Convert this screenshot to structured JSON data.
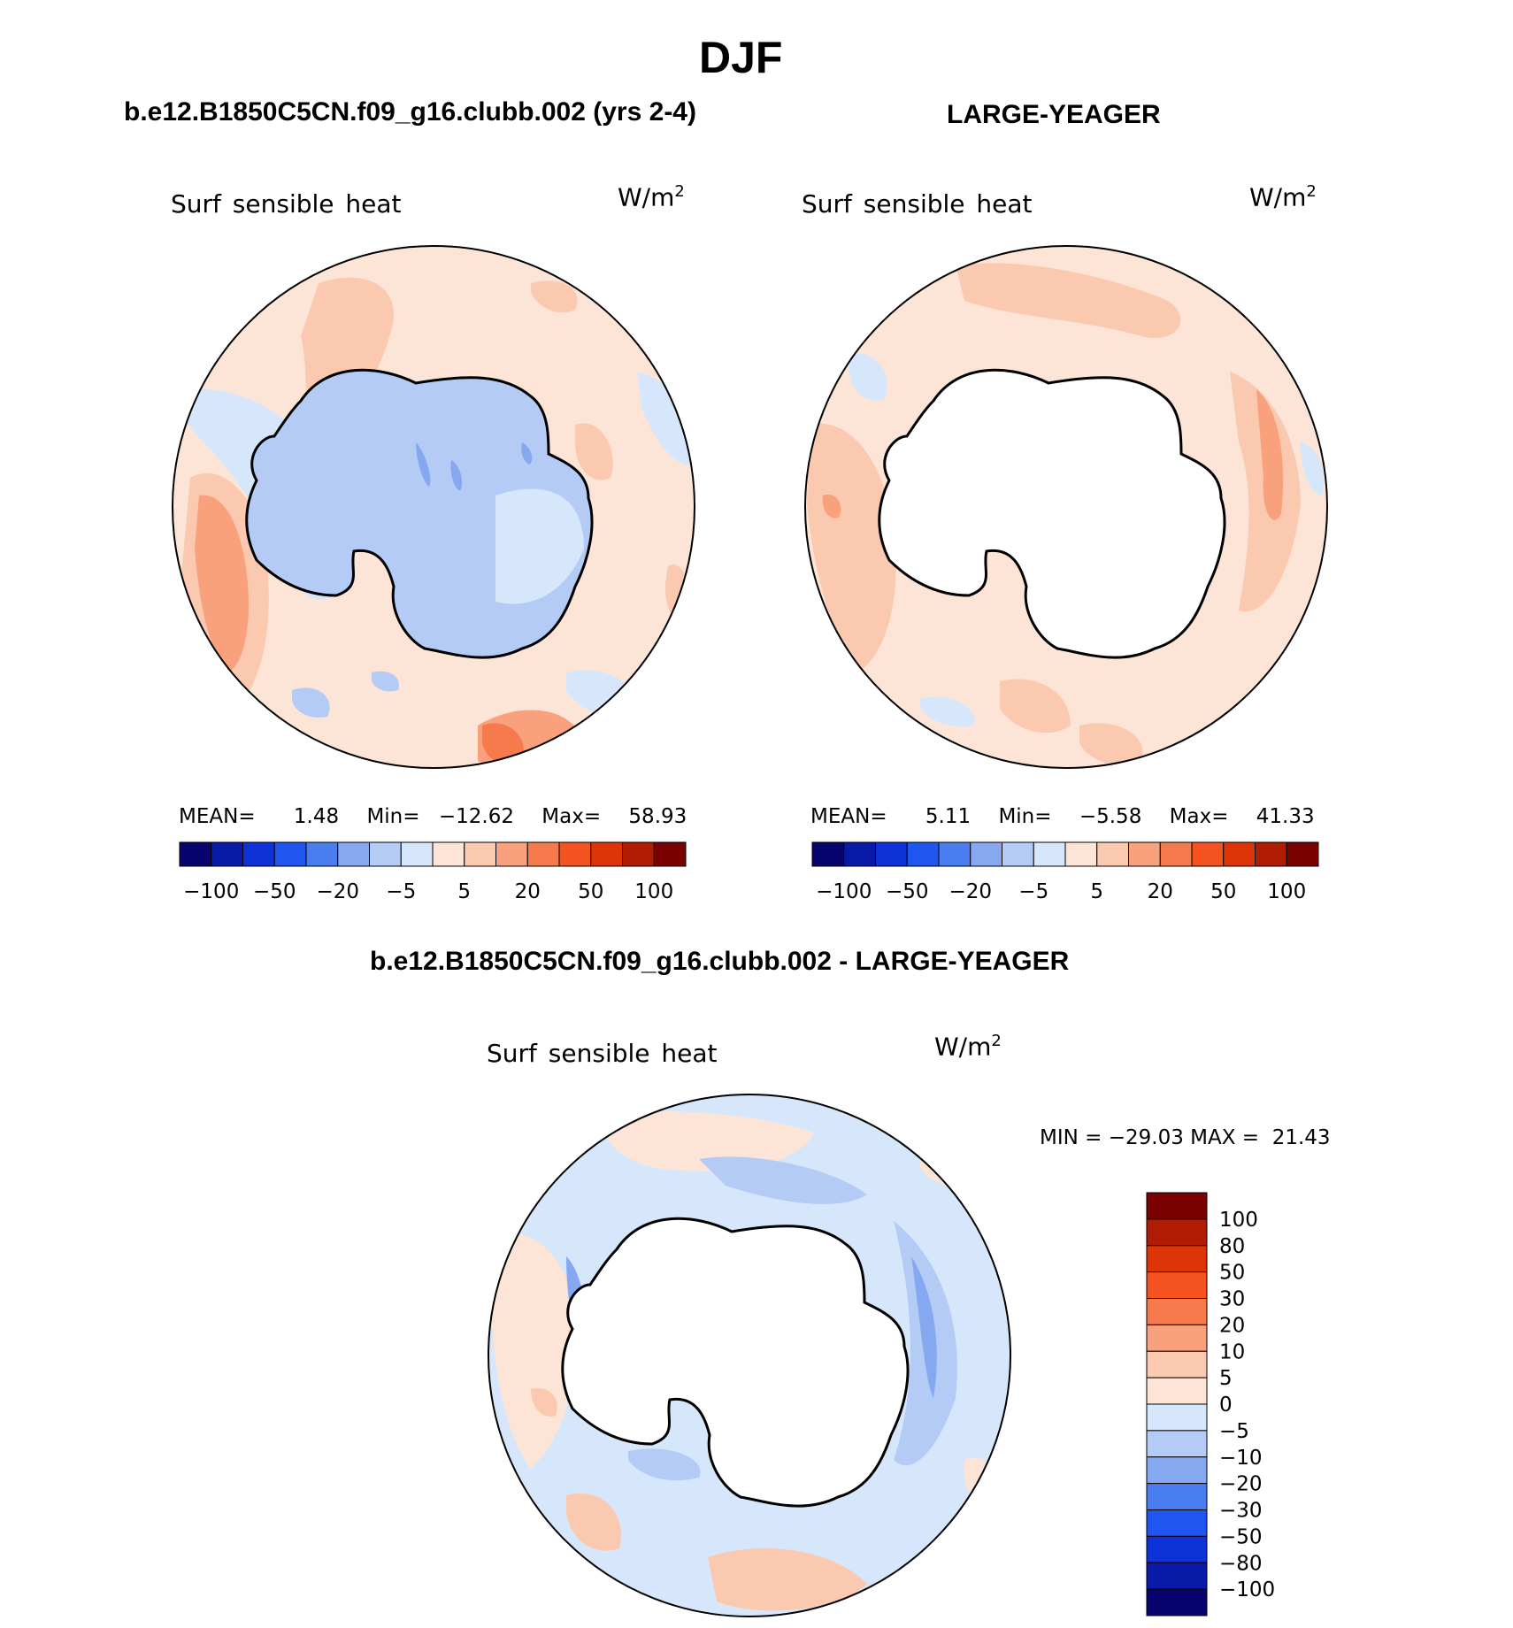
{
  "title": "DJF",
  "panels": [
    {
      "heading": "b.e12.B1850C5CN.f09_g16.clubb.002 (yrs 2-4)",
      "variable": "Surf sensible heat",
      "units": "W/m",
      "units_sup": "2",
      "stats": {
        "mean_label": "MEAN=",
        "mean": "1.48",
        "min_label": "Min=",
        "min": "−12.62",
        "max_label": "Max=",
        "max": "58.93"
      }
    },
    {
      "heading": "LARGE-YEAGER",
      "variable": "Surf sensible heat",
      "units": "W/m",
      "units_sup": "2",
      "stats": {
        "mean_label": "MEAN=",
        "mean": "5.11",
        "min_label": "Min=",
        "min": "−5.58",
        "max_label": "Max=",
        "max": "41.33"
      }
    }
  ],
  "top_colorbar": {
    "colors": [
      "#08046e",
      "#0a1aa8",
      "#0c32d8",
      "#1f55f0",
      "#4a7ef0",
      "#85a8f0",
      "#b4cbf6",
      "#d6e7fb",
      "#fce5d6",
      "#fbc8b0",
      "#f9a07c",
      "#f77a4c",
      "#f4521f",
      "#dd3408",
      "#b01c04",
      "#7a0202"
    ],
    "labels": [
      "−100",
      "−50",
      "−20",
      "−5",
      "5",
      "20",
      "50",
      "100"
    ]
  },
  "diff_panel": {
    "heading": "b.e12.B1850C5CN.f09_g16.clubb.002 - LARGE-YEAGER",
    "variable": "Surf sensible heat",
    "units": "W/m",
    "units_sup": "2",
    "stats_text": "MIN = −29.03 MAX =  21.43",
    "colorbar": {
      "colors": [
        "#7a0202",
        "#b01c04",
        "#dd3408",
        "#f4521f",
        "#f77a4c",
        "#f9a07c",
        "#fbc8b0",
        "#fce5d6",
        "#d6e7fb",
        "#b4cbf6",
        "#85a8f0",
        "#4a7ef0",
        "#1f55f0",
        "#0c32d8",
        "#0a1aa8",
        "#08046e"
      ],
      "labels": [
        "100",
        "80",
        "50",
        "30",
        "20",
        "10",
        "5",
        "0",
        "−5",
        "−10",
        "−20",
        "−30",
        "−50",
        "−80",
        "−100"
      ]
    }
  }
}
